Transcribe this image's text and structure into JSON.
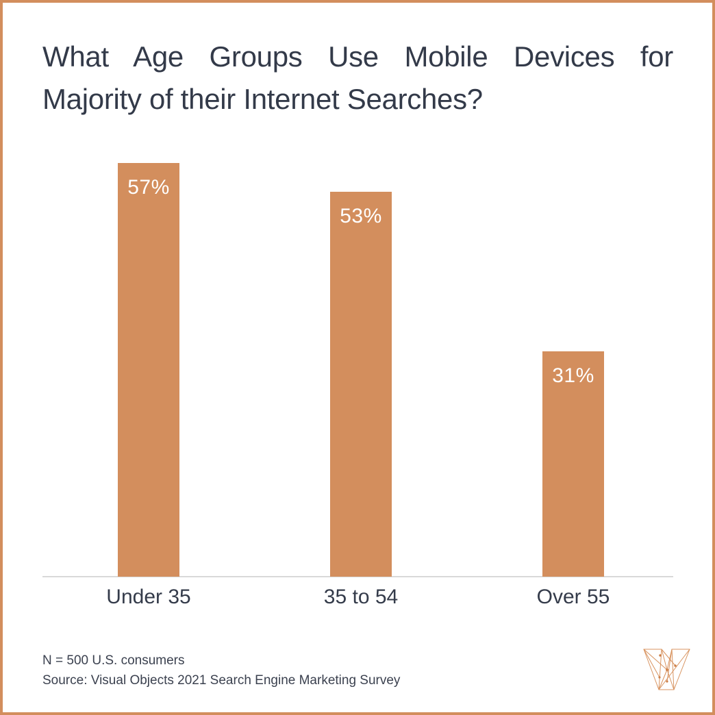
{
  "title": {
    "line1": "What Age Groups Use Mobile Devices for",
    "line2": "Majority of their Internet Searches?"
  },
  "chart_data": {
    "type": "bar",
    "title": "What Age Groups Use Mobile Devices for Majority of their Internet Searches?",
    "categories": [
      "Under 35",
      "35 to 54",
      "Over 55"
    ],
    "values": [
      57,
      53,
      31
    ],
    "value_labels": [
      "57%",
      "53%",
      "31%"
    ],
    "unit": "%",
    "xlabel": "",
    "ylabel": "",
    "ylim": [
      0,
      60
    ],
    "grid": false,
    "legend": "none",
    "bar_color": "#d38e5d",
    "value_label_color": "#ffffff",
    "axis_line_color": "#d9d9d9",
    "category_label_color": "#343b4a"
  },
  "footnote": {
    "line1": "N = 500 U.S. consumers",
    "line2": "Source: Visual Objects 2021 Search Engine Marketing Survey"
  },
  "branding": {
    "logo_name": "visual-objects-wireframe-v",
    "logo_color": "#d8935f"
  },
  "frame": {
    "border_color": "#d38e5d",
    "background_color": "#ffffff",
    "title_color": "#333a49"
  }
}
